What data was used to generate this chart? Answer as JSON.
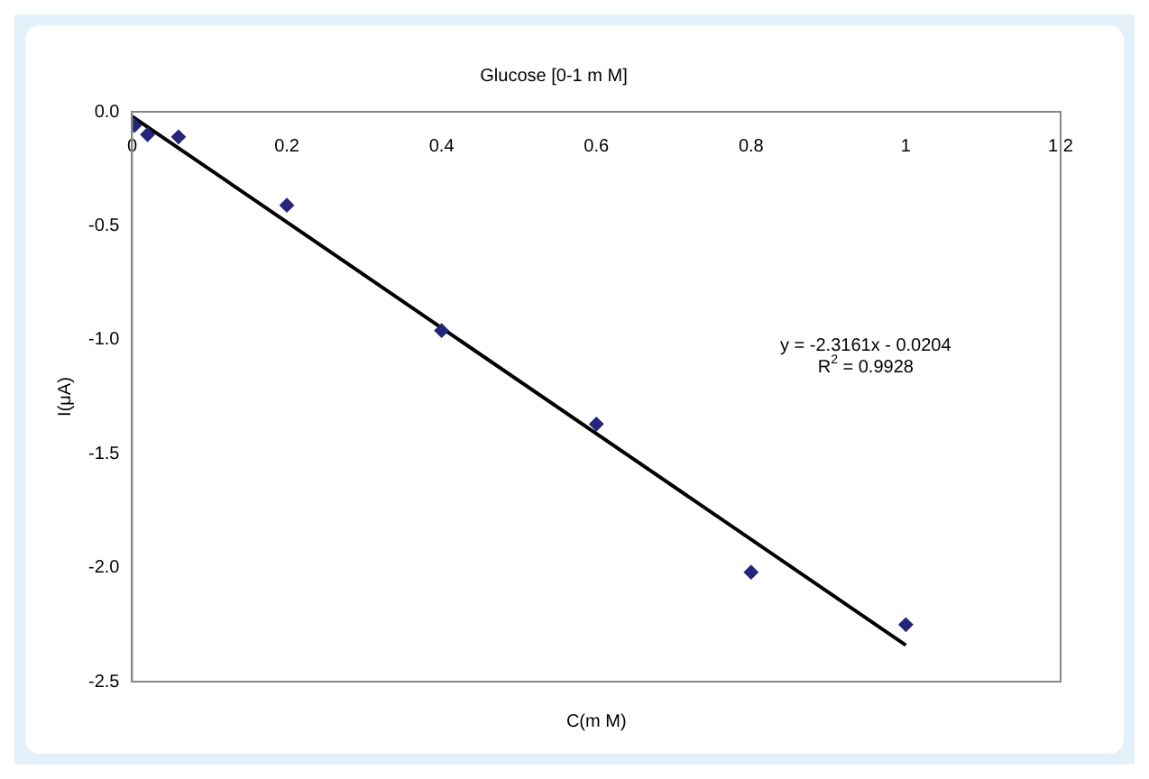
{
  "chart_data": {
    "type": "scatter",
    "title": "Glucose [0-1 m M]",
    "xlabel": "C(m M)",
    "ylabel": "I(μA)",
    "series": [
      {
        "color": "#25257a",
        "marker": "diamond",
        "x": [
          0.003,
          0.02,
          0.06,
          0.2,
          0.4,
          0.6,
          0.8,
          1.0
        ],
        "values": [
          -0.06,
          -0.1,
          -0.11,
          -0.41,
          -0.96,
          -1.37,
          -2.02,
          -2.25
        ]
      },
      {
        "type": "line",
        "color": "#000000",
        "marker": "none",
        "line_style": "solid",
        "x": [
          0,
          1
        ],
        "values": [
          -0.02,
          -2.34
        ]
      }
    ],
    "xlim": [
      0,
      1.2
    ],
    "xticks": [
      0,
      0.2,
      0.4,
      0.6,
      0.8,
      1,
      1.2
    ],
    "ylim": [
      -2.5,
      0
    ],
    "yticks": [
      {
        "value": -2.5,
        "label": "-2.5"
      },
      {
        "value": -2,
        "label": "-2.0"
      },
      {
        "value": -1.5,
        "label": "-1.5"
      },
      {
        "value": -1,
        "label": "-1.0"
      },
      {
        "value": -0.5,
        "label": "-0.5"
      },
      {
        "value": 0,
        "label": "0.0"
      }
    ],
    "annotations": [
      "y = -2.3161x - 0.0204",
      "R$^{2}$ = 0.9928"
    ],
    "grid": false,
    "legend": false
  }
}
